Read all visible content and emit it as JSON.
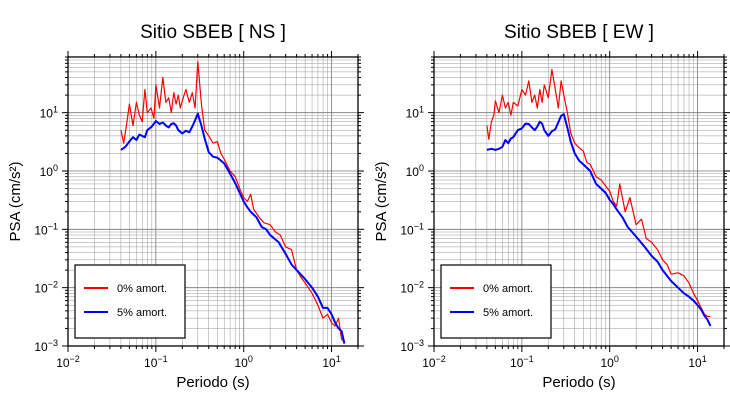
{
  "chart_data": [
    {
      "type": "line",
      "title": "Sitio SBEB [ NS ]",
      "xlabel": "Periodo (s)",
      "ylabel": "PSA (cm/s²)",
      "xscale": "log",
      "yscale": "log",
      "xlim": [
        0.01,
        20
      ],
      "ylim": [
        0.001,
        90
      ],
      "xticks": [
        {
          "base": "10",
          "exp": "−2"
        },
        {
          "base": "10",
          "exp": "−1"
        },
        {
          "base": "10",
          "exp": "0"
        },
        {
          "base": "10",
          "exp": "1"
        }
      ],
      "yticks": [
        {
          "base": "10",
          "exp": "−3"
        },
        {
          "base": "10",
          "exp": "−2"
        },
        {
          "base": "10",
          "exp": "−1"
        },
        {
          "base": "10",
          "exp": "0"
        },
        {
          "base": "10",
          "exp": "1"
        }
      ],
      "grid": true,
      "legend": "bottom-left",
      "series": [
        {
          "name": "0% amort.",
          "color": "#ff0000",
          "x": [
            0.04,
            0.043,
            0.047,
            0.05,
            0.055,
            0.06,
            0.065,
            0.07,
            0.075,
            0.08,
            0.088,
            0.095,
            0.1,
            0.11,
            0.12,
            0.13,
            0.14,
            0.15,
            0.16,
            0.17,
            0.18,
            0.19,
            0.2,
            0.22,
            0.24,
            0.26,
            0.28,
            0.3,
            0.33,
            0.36,
            0.4,
            0.45,
            0.5,
            0.55,
            0.6,
            0.7,
            0.8,
            0.9,
            1.0,
            1.1,
            1.2,
            1.3,
            1.5,
            1.7,
            2.0,
            2.3,
            2.6,
            3.0,
            3.5,
            4.0,
            4.5,
            5.0,
            6.0,
            7.0,
            8.0,
            9.0,
            10.0,
            11.0,
            12.0,
            13.0,
            14.0
          ],
          "values": [
            5,
            3,
            7,
            14,
            6,
            15,
            9,
            7,
            25,
            10,
            12,
            8,
            30,
            12,
            40,
            15,
            18,
            10,
            22,
            14,
            20,
            12,
            16,
            25,
            15,
            22,
            12,
            75,
            14,
            5,
            4,
            3,
            3.2,
            2,
            1.6,
            1.0,
            0.8,
            0.5,
            0.35,
            0.3,
            0.4,
            0.22,
            0.16,
            0.13,
            0.12,
            0.09,
            0.08,
            0.05,
            0.045,
            0.02,
            0.015,
            0.012,
            0.008,
            0.005,
            0.003,
            0.0035,
            0.0025,
            0.0022,
            0.003,
            0.0013,
            0.0012
          ]
        },
        {
          "name": "5% amort.",
          "color": "#0000ff",
          "x": [
            0.04,
            0.045,
            0.05,
            0.055,
            0.06,
            0.065,
            0.07,
            0.075,
            0.08,
            0.09,
            0.1,
            0.11,
            0.12,
            0.13,
            0.14,
            0.15,
            0.16,
            0.17,
            0.18,
            0.2,
            0.22,
            0.24,
            0.26,
            0.28,
            0.3,
            0.33,
            0.36,
            0.4,
            0.45,
            0.5,
            0.6,
            0.7,
            0.8,
            0.9,
            1.0,
            1.1,
            1.2,
            1.4,
            1.6,
            1.8,
            2.0,
            2.5,
            3.0,
            3.5,
            4.0,
            5.0,
            6.0,
            7.0,
            8.0,
            9.0,
            10.0,
            11.0,
            12.0,
            13.0,
            14.0
          ],
          "values": [
            2.3,
            2.6,
            3.2,
            3.8,
            3.4,
            4.2,
            4.0,
            3.8,
            5.0,
            5.8,
            7.2,
            6.4,
            6.8,
            6.0,
            5.6,
            6.4,
            6.6,
            6.0,
            5.0,
            4.4,
            4.9,
            4.6,
            5.8,
            7.4,
            9.6,
            6.0,
            3.6,
            2.1,
            1.75,
            1.7,
            1.35,
            0.9,
            0.62,
            0.42,
            0.3,
            0.24,
            0.2,
            0.16,
            0.11,
            0.1,
            0.08,
            0.06,
            0.038,
            0.025,
            0.02,
            0.014,
            0.01,
            0.007,
            0.0045,
            0.0045,
            0.0035,
            0.0025,
            0.002,
            0.0018,
            0.0011
          ]
        }
      ]
    },
    {
      "type": "line",
      "title": "Sitio SBEB [ EW ]",
      "xlabel": "Periodo (s)",
      "ylabel": "PSA (cm/s²)",
      "xscale": "log",
      "yscale": "log",
      "xlim": [
        0.01,
        20
      ],
      "ylim": [
        0.001,
        90
      ],
      "xticks": [
        {
          "base": "10",
          "exp": "−2"
        },
        {
          "base": "10",
          "exp": "−1"
        },
        {
          "base": "10",
          "exp": "0"
        },
        {
          "base": "10",
          "exp": "1"
        }
      ],
      "yticks": [
        {
          "base": "10",
          "exp": "−3"
        },
        {
          "base": "10",
          "exp": "−2"
        },
        {
          "base": "10",
          "exp": "−1"
        },
        {
          "base": "10",
          "exp": "0"
        },
        {
          "base": "10",
          "exp": "1"
        }
      ],
      "grid": true,
      "legend": "bottom-left",
      "series": [
        {
          "name": "0% amort.",
          "color": "#ff0000",
          "x": [
            0.04,
            0.042,
            0.045,
            0.048,
            0.05,
            0.055,
            0.06,
            0.065,
            0.07,
            0.075,
            0.08,
            0.09,
            0.1,
            0.11,
            0.12,
            0.13,
            0.14,
            0.15,
            0.16,
            0.17,
            0.18,
            0.2,
            0.22,
            0.24,
            0.26,
            0.28,
            0.3,
            0.33,
            0.36,
            0.4,
            0.45,
            0.5,
            0.55,
            0.6,
            0.7,
            0.8,
            0.9,
            1.0,
            1.1,
            1.2,
            1.3,
            1.5,
            1.7,
            2.0,
            2.3,
            2.6,
            3.0,
            3.5,
            4.0,
            4.5,
            5.0,
            6.0,
            7.0,
            8.0,
            9.0,
            10.0,
            11.0,
            12.0,
            13.0,
            14.0
          ],
          "values": [
            6,
            3.5,
            7,
            9,
            16,
            10,
            20,
            12,
            15,
            9,
            15,
            13,
            25,
            20,
            35,
            15,
            20,
            12,
            25,
            15,
            30,
            18,
            55,
            25,
            12,
            35,
            20,
            10,
            4.5,
            3,
            2.5,
            2.2,
            1.4,
            1.3,
            0.8,
            0.7,
            0.55,
            0.45,
            0.3,
            0.25,
            0.6,
            0.2,
            0.35,
            0.12,
            0.15,
            0.07,
            0.06,
            0.045,
            0.03,
            0.025,
            0.017,
            0.018,
            0.016,
            0.012,
            0.008,
            0.006,
            0.0045,
            0.0035,
            0.0032,
            0.0032
          ]
        },
        {
          "name": "5% amort.",
          "color": "#0000ff",
          "x": [
            0.04,
            0.045,
            0.05,
            0.055,
            0.06,
            0.065,
            0.07,
            0.075,
            0.08,
            0.09,
            0.1,
            0.11,
            0.12,
            0.13,
            0.14,
            0.15,
            0.16,
            0.17,
            0.18,
            0.2,
            0.22,
            0.24,
            0.26,
            0.28,
            0.3,
            0.33,
            0.36,
            0.4,
            0.45,
            0.5,
            0.6,
            0.7,
            0.8,
            0.9,
            1.0,
            1.1,
            1.2,
            1.4,
            1.6,
            1.8,
            2.0,
            2.5,
            3.0,
            3.5,
            4.0,
            5.0,
            6.0,
            7.0,
            8.0,
            9.0,
            10.0,
            11.0,
            12.0,
            13.0,
            14.0
          ],
          "values": [
            2.3,
            2.4,
            2.3,
            2.4,
            2.6,
            3.4,
            3.0,
            3.6,
            3.8,
            5.0,
            5.4,
            6.5,
            6.4,
            5.6,
            5.0,
            5.8,
            7.0,
            6.5,
            5.0,
            4.0,
            4.8,
            5.2,
            6.8,
            8.8,
            9.4,
            5.5,
            3.2,
            2.0,
            1.5,
            1.3,
            1.0,
            0.6,
            0.5,
            0.42,
            0.32,
            0.27,
            0.22,
            0.16,
            0.11,
            0.09,
            0.075,
            0.05,
            0.035,
            0.028,
            0.02,
            0.013,
            0.01,
            0.008,
            0.007,
            0.006,
            0.005,
            0.0042,
            0.0033,
            0.0028,
            0.0022
          ]
        }
      ]
    }
  ]
}
